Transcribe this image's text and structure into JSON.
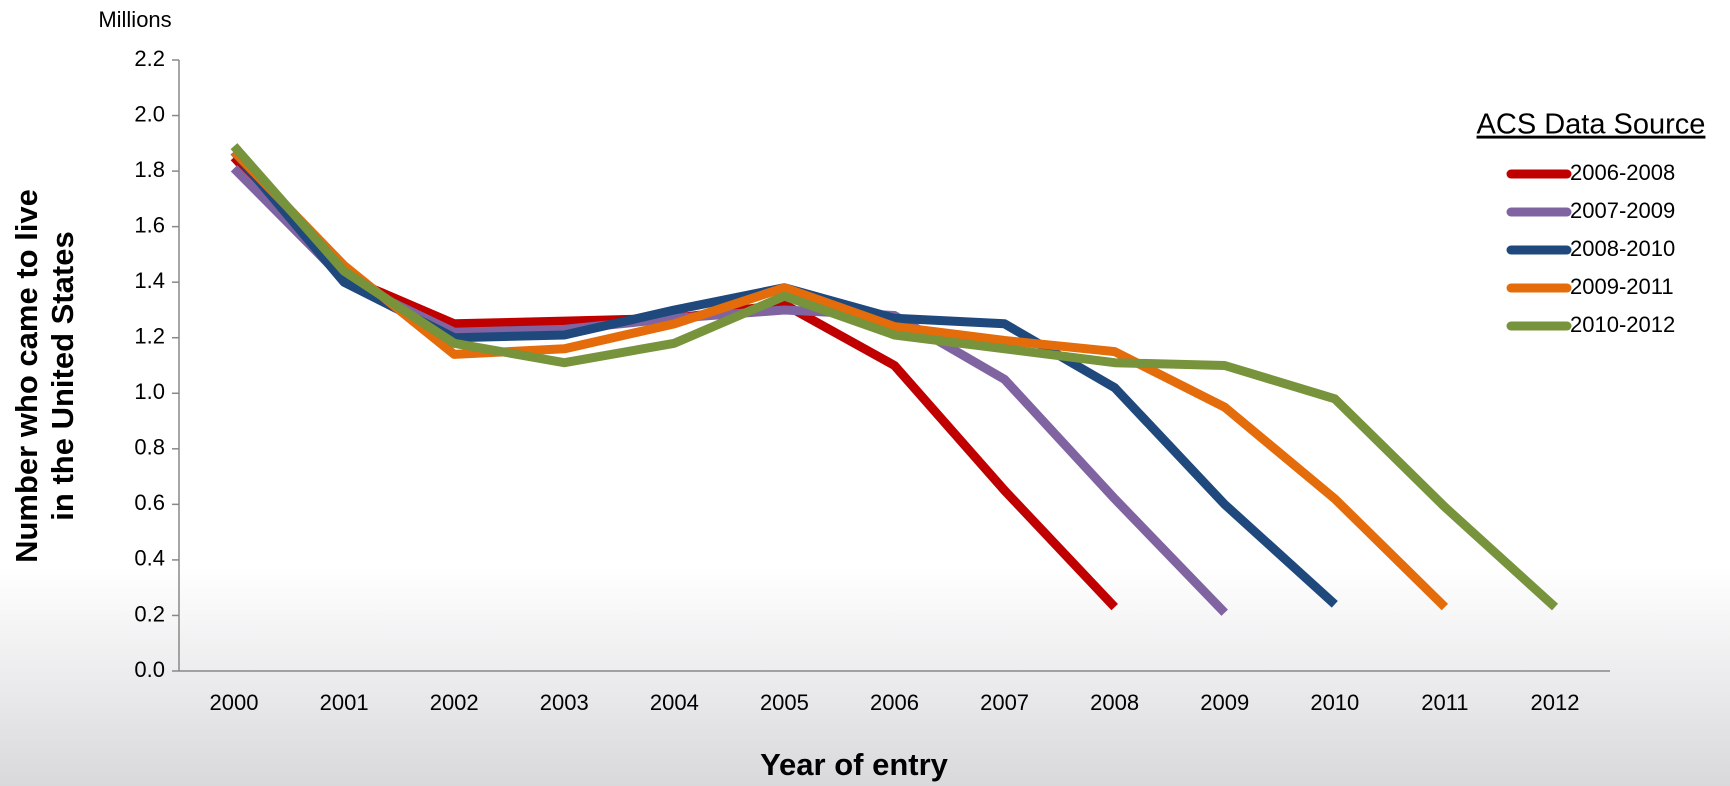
{
  "chart_data": {
    "type": "line",
    "unit_label": "Millions",
    "x_label": "Year of entry",
    "y_label": [
      "Number who came to live",
      "in the United States"
    ],
    "legend_title": "ACS Data Source",
    "legend": "right",
    "grid": false,
    "categories": [
      "2000",
      "2001",
      "2002",
      "2003",
      "2004",
      "2005",
      "2006",
      "2007",
      "2008",
      "2009",
      "2010",
      "2011",
      "2012"
    ],
    "ylim": [
      0,
      2.2
    ],
    "yticks": [
      {
        "value": 0,
        "label": "0.0"
      },
      0.2,
      0.4,
      0.6,
      0.8,
      {
        "value": 1,
        "label": "1.0"
      },
      1.2,
      1.4,
      1.6,
      1.8,
      {
        "value": 2,
        "label": "2.0"
      },
      2.2
    ],
    "series": [
      {
        "name": "2006-2008",
        "color": "#c00000",
        "values": [
          1.85,
          1.42,
          1.25,
          1.26,
          1.27,
          1.32,
          1.1,
          0.65,
          0.23,
          null,
          null,
          null,
          null
        ]
      },
      {
        "name": "2007-2009",
        "color": "#8064a2",
        "values": [
          1.81,
          1.41,
          1.22,
          1.23,
          1.27,
          1.3,
          1.28,
          1.05,
          0.62,
          0.21,
          null,
          null,
          null
        ]
      },
      {
        "name": "2008-2010",
        "color": "#1f497d",
        "values": [
          1.87,
          1.4,
          1.2,
          1.21,
          1.3,
          1.38,
          1.27,
          1.25,
          1.02,
          0.6,
          0.24,
          null,
          null
        ]
      },
      {
        "name": "2009-2011",
        "color": "#e46c0a",
        "values": [
          1.87,
          1.46,
          1.14,
          1.16,
          1.25,
          1.38,
          1.24,
          1.19,
          1.15,
          0.95,
          0.62,
          0.23,
          null
        ]
      },
      {
        "name": "2010-2012",
        "color": "#77933c",
        "values": [
          1.89,
          1.44,
          1.18,
          1.11,
          1.18,
          1.35,
          1.21,
          1.16,
          1.11,
          1.1,
          0.98,
          0.59,
          0.23
        ]
      }
    ]
  }
}
